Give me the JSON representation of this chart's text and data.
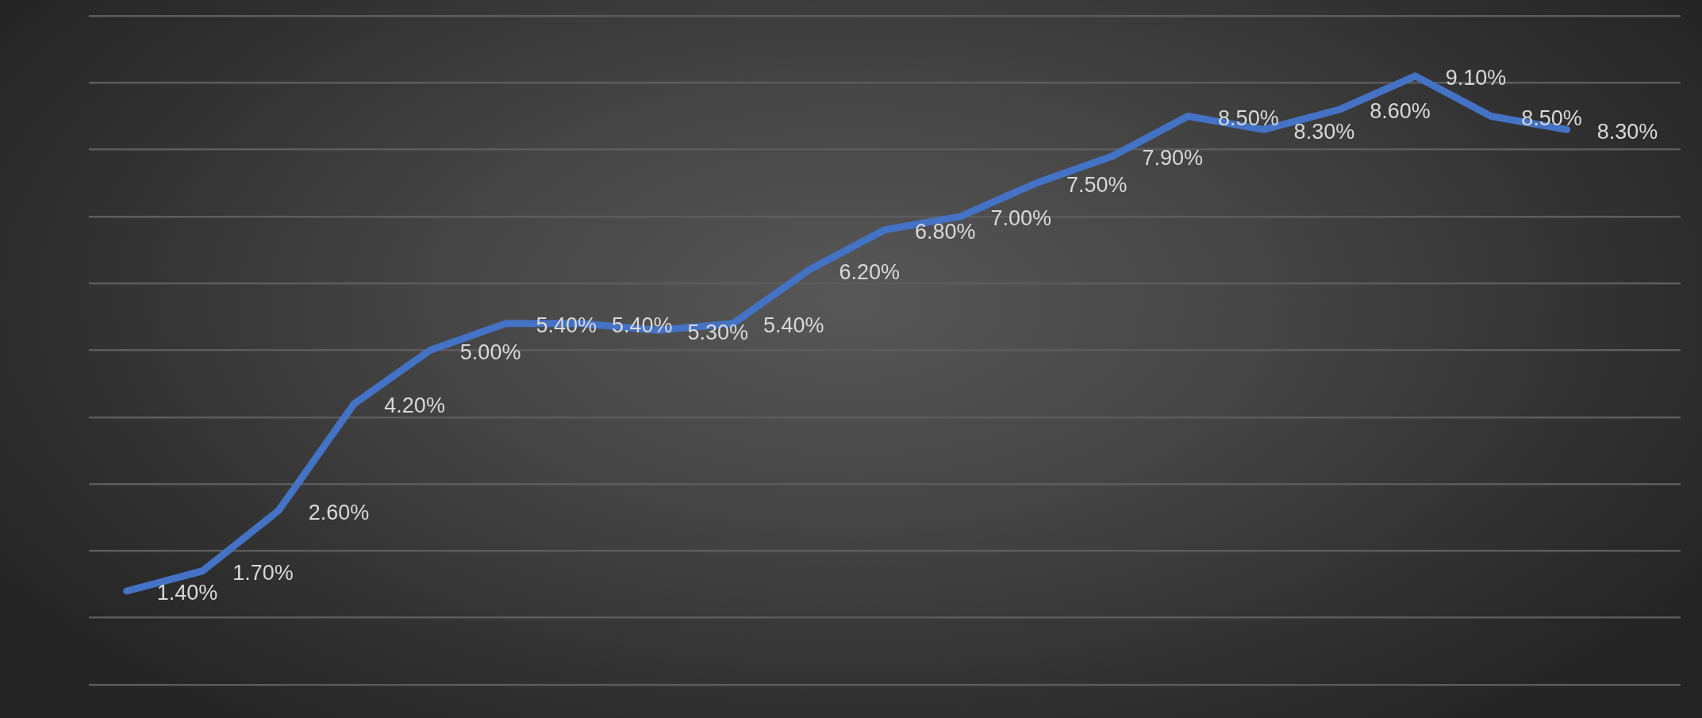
{
  "chart_data": {
    "type": "line",
    "categories": [
      null,
      null,
      null,
      null,
      null,
      null,
      null,
      null,
      null,
      null,
      null,
      null,
      null,
      null,
      null,
      null,
      null,
      null,
      null,
      null,
      null
    ],
    "values": [
      1.4,
      1.7,
      2.6,
      4.2,
      5.0,
      5.4,
      5.4,
      5.3,
      5.4,
      6.2,
      6.8,
      7.0,
      7.5,
      7.9,
      8.5,
      8.3,
      8.6,
      9.1,
      8.5,
      8.3,
      null
    ],
    "value_labels": [
      "1.40%",
      "1.70%",
      "2.60%",
      "4.20%",
      "5.00%",
      "5.40%",
      "5.40%",
      "5.30%",
      "5.40%",
      "6.20%",
      "6.80%",
      "7.00%",
      "7.50%",
      "7.90%",
      "8.50%",
      "8.30%",
      "8.60%",
      "9.10%",
      "8.50%",
      "8.30%",
      null
    ],
    "color": "#4472c4",
    "ylim": [
      0,
      10
    ],
    "yticks": [
      {
        "value": 0,
        "label": null
      },
      {
        "value": 1,
        "label": null
      },
      {
        "value": 2,
        "label": null
      },
      {
        "value": 3,
        "label": null
      },
      {
        "value": 4,
        "label": null
      },
      {
        "value": 5,
        "label": null
      },
      {
        "value": 6,
        "label": null
      },
      {
        "value": 7,
        "label": null
      },
      {
        "value": 8,
        "label": null
      },
      {
        "value": 9,
        "label": null
      },
      {
        "value": 10,
        "label": null
      }
    ],
    "grid": "y",
    "tick_labels": false,
    "marker": "none",
    "line_style": "solid"
  }
}
